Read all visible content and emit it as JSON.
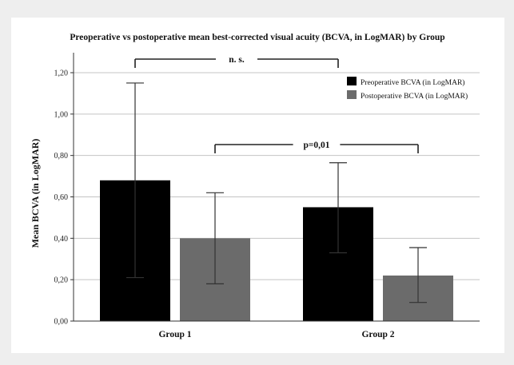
{
  "chart_data": {
    "type": "bar",
    "title": "Preoperative vs postoperative mean best-corrected visual acuity (BCVA, in LogMAR) by Group",
    "xlabel": "",
    "ylabel": "Mean BCVA (in LogMAR)",
    "categories": [
      "Group 1",
      "Group 2"
    ],
    "series": [
      {
        "name": "Preoperative BCVA (in LogMAR)",
        "color": "#000000",
        "values": [
          0.68,
          0.55
        ],
        "error_low": [
          0.21,
          0.33
        ],
        "error_high": [
          1.15,
          0.765
        ]
      },
      {
        "name": "Postoperative BCVA (in LogMAR)",
        "color": "#6b6b6b",
        "values": [
          0.4,
          0.22
        ],
        "error_low": [
          0.18,
          0.09
        ],
        "error_high": [
          0.62,
          0.355
        ]
      }
    ],
    "ylim": [
      0,
      1.2
    ],
    "yticks": [
      0.0,
      0.2,
      0.4,
      0.6,
      0.8,
      1.0,
      1.2
    ],
    "ytick_labels": [
      "0,00",
      "0,20",
      "0,40",
      "0,60",
      "0,80",
      "1,00",
      "1,20"
    ],
    "grid": true,
    "legend_position": "top-right",
    "annotations": [
      {
        "label": "n. s.",
        "from": "Group 1 Preoperative BCVA (in LogMAR)",
        "to": "Group 2 Preoperative BCVA (in LogMAR)"
      },
      {
        "label": "p=0,01",
        "from": "Group 1 Postoperative BCVA (in LogMAR)",
        "to": "Group 2 Postoperative BCVA (in LogMAR)"
      }
    ]
  }
}
